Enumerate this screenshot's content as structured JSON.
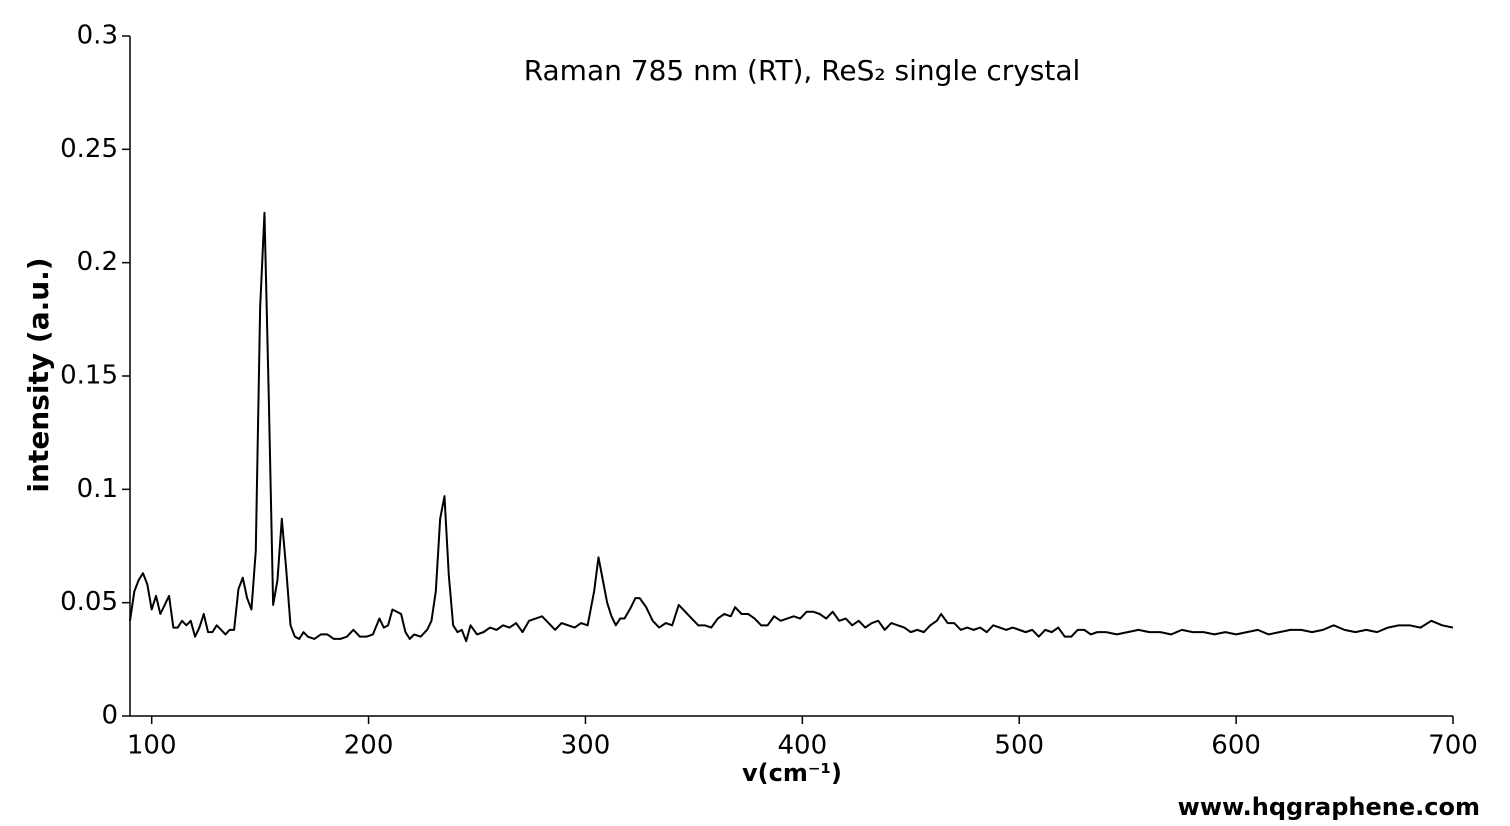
{
  "chart_data": {
    "type": "line",
    "title": "Raman 785 nm (RT), ReS₂ single crystal",
    "x_label": "v(cm⁻¹)",
    "y_label": "intensity (a.u.)",
    "annotation": "www.hqgraphene.com",
    "x": [
      90,
      92,
      94,
      96,
      98,
      100,
      102,
      104,
      106,
      108,
      110,
      112,
      114,
      116,
      118,
      120,
      122,
      124,
      126,
      128,
      130,
      132,
      134,
      136,
      138,
      140,
      142,
      144,
      146,
      148,
      150,
      152,
      154,
      156,
      158,
      160,
      162,
      164,
      166,
      168,
      170,
      172,
      175,
      178,
      181,
      184,
      187,
      190,
      193,
      196,
      199,
      202,
      205,
      207,
      209,
      211,
      213,
      215,
      217,
      219,
      221,
      224,
      227,
      229,
      231,
      233,
      235,
      237,
      239,
      241,
      243,
      245,
      247,
      250,
      253,
      256,
      259,
      262,
      265,
      268,
      271,
      274,
      277,
      280,
      283,
      286,
      289,
      292,
      295,
      298,
      301,
      304,
      306,
      308,
      310,
      312,
      314,
      316,
      318,
      321,
      323,
      325,
      328,
      331,
      334,
      337,
      340,
      343,
      346,
      349,
      352,
      355,
      358,
      361,
      364,
      367,
      369,
      372,
      375,
      378,
      381,
      384,
      387,
      390,
      393,
      396,
      399,
      402,
      405,
      408,
      411,
      414,
      417,
      420,
      423,
      426,
      429,
      432,
      435,
      438,
      441,
      444,
      447,
      450,
      453,
      456,
      459,
      462,
      464,
      467,
      470,
      473,
      476,
      479,
      482,
      485,
      488,
      491,
      494,
      497,
      500,
      503,
      506,
      509,
      512,
      515,
      518,
      521,
      524,
      527,
      530,
      533,
      536,
      540,
      545,
      550,
      555,
      560,
      565,
      570,
      575,
      580,
      585,
      590,
      595,
      600,
      605,
      610,
      615,
      620,
      625,
      630,
      635,
      640,
      645,
      650,
      655,
      660,
      665,
      670,
      675,
      680,
      685,
      690,
      695,
      700
    ],
    "series": [
      {
        "name": "ReS₂",
        "color": "#000000",
        "values": [
          0.042,
          0.055,
          0.06,
          0.063,
          0.058,
          0.047,
          0.053,
          0.045,
          0.049,
          0.053,
          0.039,
          0.039,
          0.042,
          0.04,
          0.042,
          0.035,
          0.039,
          0.045,
          0.037,
          0.037,
          0.04,
          0.038,
          0.036,
          0.038,
          0.038,
          0.056,
          0.061,
          0.052,
          0.047,
          0.073,
          0.18,
          0.222,
          0.14,
          0.049,
          0.06,
          0.087,
          0.065,
          0.04,
          0.035,
          0.034,
          0.037,
          0.035,
          0.034,
          0.036,
          0.036,
          0.034,
          0.034,
          0.035,
          0.038,
          0.035,
          0.035,
          0.036,
          0.043,
          0.039,
          0.04,
          0.047,
          0.046,
          0.045,
          0.037,
          0.034,
          0.036,
          0.035,
          0.038,
          0.042,
          0.055,
          0.087,
          0.097,
          0.062,
          0.04,
          0.037,
          0.038,
          0.033,
          0.04,
          0.036,
          0.037,
          0.039,
          0.038,
          0.04,
          0.039,
          0.041,
          0.037,
          0.042,
          0.043,
          0.044,
          0.041,
          0.038,
          0.041,
          0.04,
          0.039,
          0.041,
          0.04,
          0.055,
          0.07,
          0.06,
          0.05,
          0.044,
          0.04,
          0.043,
          0.043,
          0.048,
          0.052,
          0.052,
          0.048,
          0.042,
          0.039,
          0.041,
          0.04,
          0.049,
          0.046,
          0.043,
          0.04,
          0.04,
          0.039,
          0.043,
          0.045,
          0.044,
          0.048,
          0.045,
          0.045,
          0.043,
          0.04,
          0.04,
          0.044,
          0.042,
          0.043,
          0.044,
          0.043,
          0.046,
          0.046,
          0.045,
          0.043,
          0.046,
          0.042,
          0.043,
          0.04,
          0.042,
          0.039,
          0.041,
          0.042,
          0.038,
          0.041,
          0.04,
          0.039,
          0.037,
          0.038,
          0.037,
          0.04,
          0.042,
          0.045,
          0.041,
          0.041,
          0.038,
          0.039,
          0.038,
          0.039,
          0.037,
          0.04,
          0.039,
          0.038,
          0.039,
          0.038,
          0.037,
          0.038,
          0.035,
          0.038,
          0.037,
          0.039,
          0.035,
          0.035,
          0.038,
          0.038,
          0.036,
          0.037,
          0.037,
          0.036,
          0.037,
          0.038,
          0.037,
          0.037,
          0.036,
          0.038,
          0.037,
          0.037,
          0.036,
          0.037,
          0.036,
          0.037,
          0.038,
          0.036,
          0.037,
          0.038,
          0.038,
          0.037,
          0.038,
          0.04,
          0.038,
          0.037,
          0.038,
          0.037,
          0.039,
          0.04,
          0.04,
          0.039,
          0.042,
          0.04,
          0.039
        ]
      }
    ],
    "xlim": [
      90,
      700
    ],
    "xticks": [
      100,
      200,
      300,
      400,
      500,
      600,
      700
    ],
    "ylim": [
      0,
      0.3
    ],
    "yticks": [
      0,
      0.05,
      0.1,
      0.15,
      0.2,
      0.25,
      0.3
    ],
    "grid": false
  }
}
